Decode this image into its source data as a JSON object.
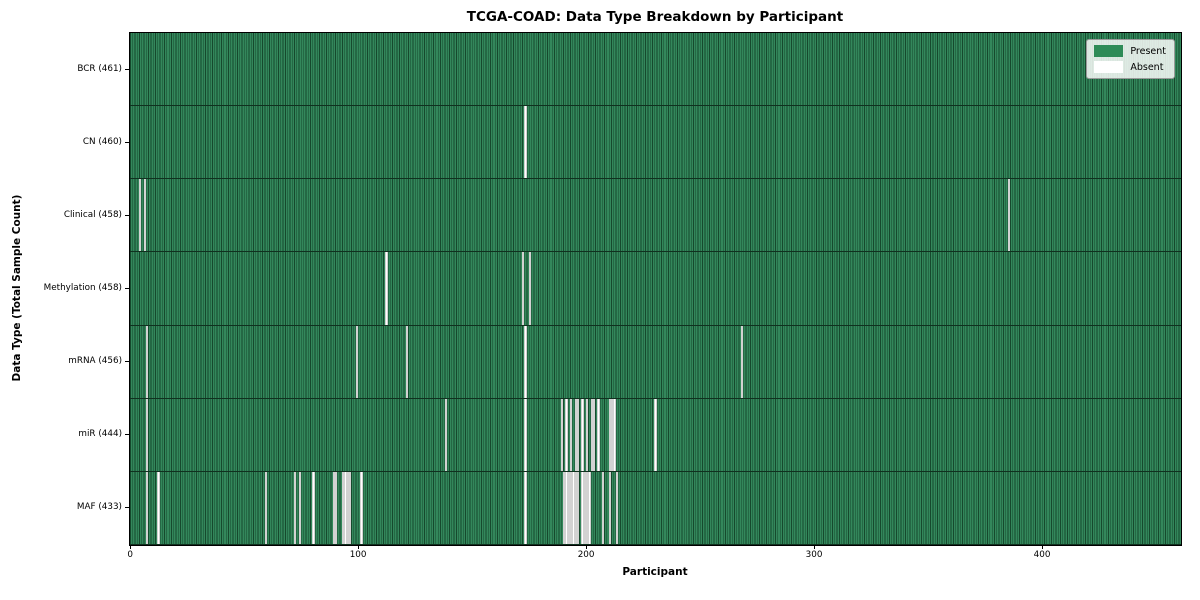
{
  "colors": {
    "present": "#2e8b57",
    "absent": "#ffffff",
    "cell_fill": "#33875b",
    "cell_edge": "#16492d",
    "row_separator": "#10311f",
    "axis_spine": "#000000"
  },
  "legend": {
    "items": [
      {
        "label": "Present",
        "color": "#2e8b57"
      },
      {
        "label": "Absent",
        "color": "#ffffff"
      }
    ]
  },
  "chart_data": {
    "type": "heatmap",
    "title": "TCGA-COAD: Data Type Breakdown by Participant",
    "xlabel": "Participant",
    "ylabel": "Data Type (Total Sample Count)",
    "x_ticks": [
      0,
      100,
      200,
      300,
      400
    ],
    "x_range": [
      -0.5,
      460.5
    ],
    "n_participants": 461,
    "cell_states": [
      "Present",
      "Absent"
    ],
    "rows": [
      {
        "label": "BCR",
        "total": 461,
        "absent": []
      },
      {
        "label": "CN",
        "total": 460,
        "absent": [
          173
        ]
      },
      {
        "label": "Clinical",
        "total": 458,
        "absent": [
          4,
          6,
          385
        ]
      },
      {
        "label": "Methylation",
        "total": 458,
        "absent": [
          112,
          172,
          175
        ]
      },
      {
        "label": "mRNA",
        "total": 456,
        "absent": [
          7,
          99,
          121,
          173,
          268
        ]
      },
      {
        "label": "miR",
        "total": 444,
        "absent": [
          7,
          138,
          173,
          189,
          191,
          193,
          195,
          196,
          198,
          200,
          202,
          203,
          205,
          210,
          211,
          212,
          230
        ]
      },
      {
        "label": "MAF",
        "total": 433,
        "absent": [
          7,
          12,
          59,
          72,
          74,
          80,
          89,
          90,
          93,
          94,
          95,
          96,
          101,
          173,
          190,
          191,
          192,
          193,
          194,
          195,
          196,
          198,
          199,
          200,
          201,
          207,
          210,
          213
        ]
      }
    ]
  }
}
